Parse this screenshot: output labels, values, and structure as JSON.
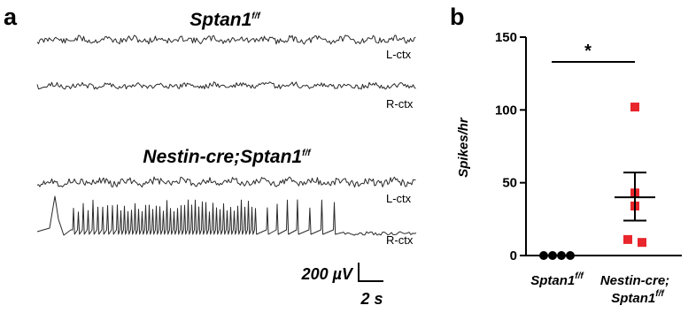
{
  "panel_a": {
    "label": "a",
    "groups": [
      {
        "title": "Sptan1",
        "title_sup": "f/f",
        "channels": [
          {
            "label": "L-ctx",
            "pattern": "noise"
          },
          {
            "label": "R-ctx",
            "pattern": "noise"
          }
        ]
      },
      {
        "title": "Nestin-cre;Sptan1",
        "title_sup": "f/f",
        "channels": [
          {
            "label": "L-ctx",
            "pattern": "noise"
          },
          {
            "label": "R-ctx",
            "pattern": "spikes"
          }
        ]
      }
    ],
    "scale_bar": {
      "amplitude": "200 µV",
      "time": "2 s"
    }
  },
  "panel_b": {
    "label": "b",
    "significance": "*",
    "colors": {
      "control": "#000000",
      "mutant": "#e8262c"
    },
    "chart_data": {
      "type": "scatter",
      "ylabel": "Spikes/hr",
      "ylim": [
        0,
        150
      ],
      "yticks": [
        0,
        50,
        100,
        150
      ],
      "categories": [
        {
          "label": "Sptan1",
          "sup": "f/f"
        },
        {
          "label_line1": "Nestin-cre;",
          "label_line2": "Sptan1",
          "sup": "f/f"
        }
      ],
      "series": [
        {
          "category": 0,
          "marker": "circle",
          "values": [
            0,
            0,
            0,
            0
          ]
        },
        {
          "category": 1,
          "marker": "square",
          "values": [
            102,
            43,
            34,
            11,
            9
          ],
          "mean": 40,
          "sem_low": 24,
          "sem_high": 57
        }
      ]
    }
  }
}
